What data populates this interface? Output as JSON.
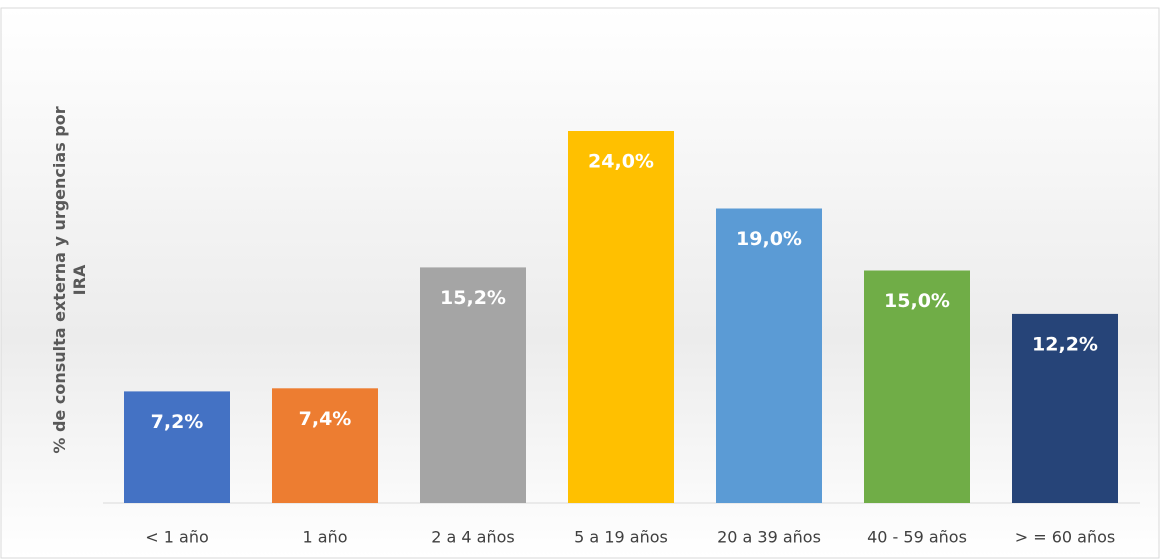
{
  "chart_data": {
    "type": "bar",
    "y_label": "% de consulta externa y urgencias por IRA",
    "categories": [
      "< 1 año",
      "1 año",
      "2 a 4 años",
      "5 a 19 años",
      "20 a 39 años",
      "40 - 59 años",
      "> = 60 años"
    ],
    "values": [
      7.2,
      7.4,
      15.2,
      24.0,
      19.0,
      15.0,
      12.2
    ],
    "value_labels": [
      "7,2%",
      "7,4%",
      "15,2%",
      "24,0%",
      "19,0%",
      "15,0%",
      "12,2%"
    ],
    "colors": [
      "#4472c4",
      "#ed7d31",
      "#a5a5a5",
      "#ffc000",
      "#5b9bd5",
      "#70ad47",
      "#264478"
    ]
  }
}
